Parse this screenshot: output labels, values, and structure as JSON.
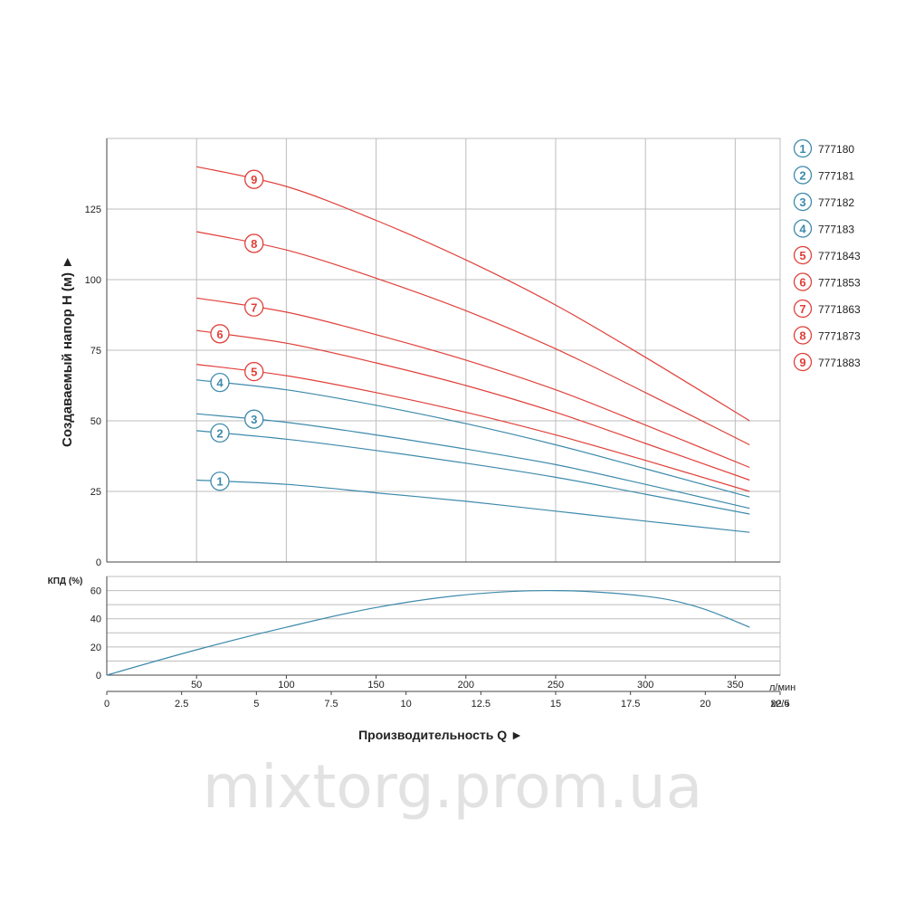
{
  "watermark": "mixtorg.prom.ua",
  "colors": {
    "blue": "#3d8aab",
    "red": "#e0403a",
    "grid": "#bdbdbd",
    "axis": "#444444"
  },
  "chart_data": [
    {
      "type": "line",
      "title": "",
      "ylabel": "Создаваемый напор H (м) ►",
      "xlim": [
        0,
        375
      ],
      "ylim": [
        0,
        150
      ],
      "x_ticks": [
        50,
        100,
        150,
        200,
        250,
        300,
        350
      ],
      "y_ticks": [
        0,
        25,
        50,
        75,
        100,
        125
      ],
      "grid": true,
      "legend": "right",
      "series": [
        {
          "name": "777180",
          "badge": "1",
          "color": "blue",
          "x": [
            50,
            100,
            150,
            200,
            250,
            300,
            358
          ],
          "values": [
            29,
            27.5,
            24.5,
            21.5,
            18,
            14.5,
            10.5
          ]
        },
        {
          "name": "777181",
          "badge": "2",
          "color": "blue",
          "x": [
            50,
            100,
            150,
            200,
            250,
            300,
            358
          ],
          "values": [
            46.5,
            43.5,
            39.5,
            35,
            30,
            24,
            17
          ]
        },
        {
          "name": "777182",
          "badge": "3",
          "color": "blue",
          "x": [
            50,
            100,
            150,
            200,
            250,
            300,
            358
          ],
          "values": [
            52.5,
            49.5,
            45,
            40,
            34.5,
            27.5,
            19
          ]
        },
        {
          "name": "777183",
          "badge": "4",
          "color": "blue",
          "x": [
            50,
            100,
            150,
            200,
            250,
            300,
            358
          ],
          "values": [
            64.5,
            61,
            55.5,
            49,
            41.5,
            33,
            23
          ]
        },
        {
          "name": "7771843",
          "badge": "5",
          "color": "red",
          "x": [
            50,
            100,
            150,
            200,
            250,
            300,
            358
          ],
          "values": [
            70,
            66,
            60,
            53,
            45,
            36,
            25
          ]
        },
        {
          "name": "7771853",
          "badge": "6",
          "color": "red",
          "x": [
            50,
            100,
            150,
            200,
            250,
            300,
            358
          ],
          "values": [
            82,
            77.5,
            70.5,
            62.5,
            53,
            42,
            29
          ]
        },
        {
          "name": "7771863",
          "badge": "7",
          "color": "red",
          "x": [
            50,
            100,
            150,
            200,
            250,
            300,
            358
          ],
          "values": [
            93.5,
            88.5,
            80.5,
            71.5,
            61,
            48.5,
            33.5
          ]
        },
        {
          "name": "7771873",
          "badge": "8",
          "color": "red",
          "x": [
            50,
            100,
            150,
            200,
            250,
            300,
            358
          ],
          "values": [
            117,
            110.5,
            100.5,
            89,
            75.5,
            60,
            41.5
          ]
        },
        {
          "name": "7771883",
          "badge": "9",
          "color": "red",
          "x": [
            50,
            100,
            150,
            200,
            250,
            300,
            358
          ],
          "values": [
            140,
            133,
            121,
            107,
            91,
            72.5,
            50
          ]
        }
      ]
    },
    {
      "type": "line",
      "title": "",
      "ylabel": "КПД (%)",
      "xlim": [
        0,
        375
      ],
      "ylim": [
        0,
        70
      ],
      "y_ticks": [
        0,
        20,
        40,
        60
      ],
      "grid": true,
      "x_ticks": [
        50,
        100,
        150,
        200,
        250,
        300,
        350
      ],
      "x_unit": "л/мин",
      "x2_ticks": [
        "0",
        "2.5",
        "5",
        "7.5",
        "10",
        "12.5",
        "15",
        "17.5",
        "20",
        "22.5"
      ],
      "x2_values": [
        0,
        2.5,
        5,
        7.5,
        10,
        12.5,
        15,
        17.5,
        20,
        22.5
      ],
      "x2_unit": "м³/ч",
      "xlabel": "Производительность Q ►",
      "series": [
        {
          "color": "blue",
          "x": [
            0,
            50,
            100,
            150,
            200,
            250,
            300,
            330,
            358
          ],
          "values": [
            0,
            18,
            34,
            48,
            57,
            60,
            56,
            48,
            34
          ]
        }
      ]
    }
  ]
}
